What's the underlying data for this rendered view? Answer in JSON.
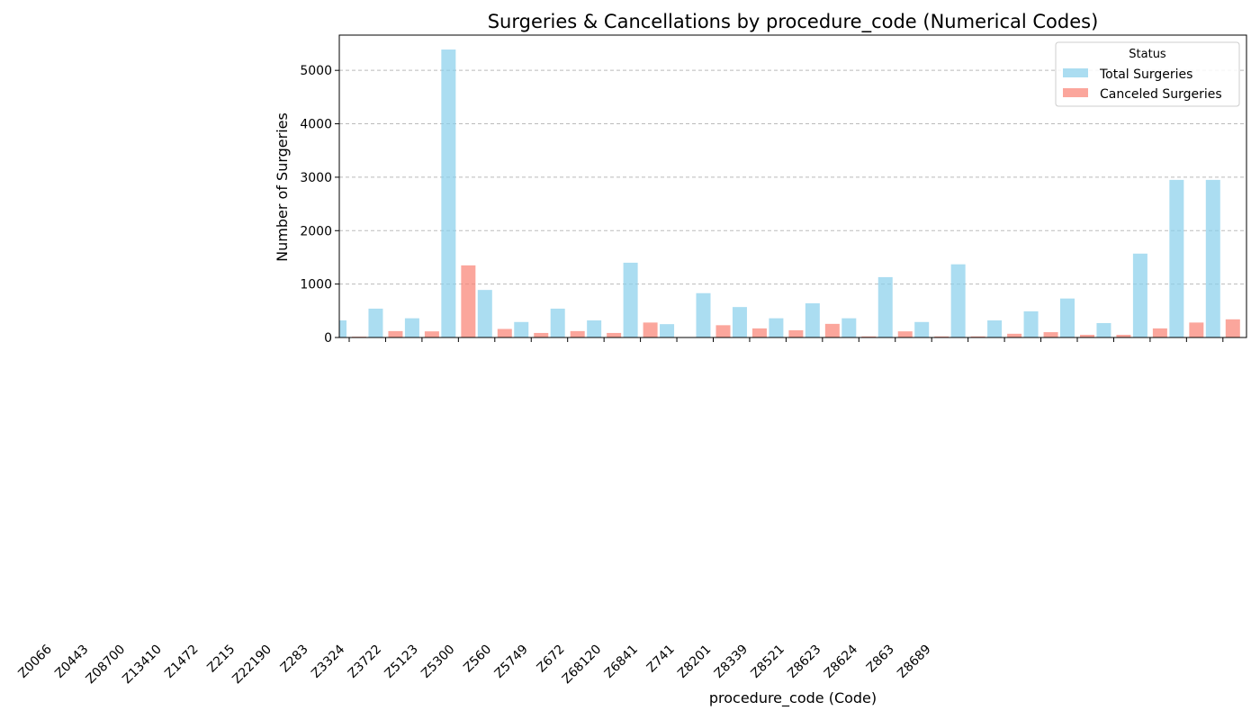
{
  "chart_data": {
    "type": "bar",
    "title": "Surgeries & Cancellations by procedure_code (Numerical Codes)",
    "xlabel": "procedure_code (Code)",
    "ylabel": "Number of Surgeries",
    "ylim": [
      0,
      5660
    ],
    "yticks": [
      0,
      1000,
      2000,
      3000,
      4000,
      5000
    ],
    "grid": "y-dashed",
    "legend": {
      "title": "Status",
      "placement": "top-right"
    },
    "category_labels": [
      "Z0066",
      "Z0443",
      "Z08700",
      "Z13410",
      "Z1472",
      "Z215",
      "Z22190",
      "Z283",
      "Z3324",
      "Z3722",
      "Z5123",
      "Z5300",
      "Z560",
      "Z5749",
      "Z672",
      "Z68120",
      "Z6841",
      "Z741",
      "Z8201",
      "Z8339",
      "Z8521",
      "Z8623",
      "Z8624",
      "Z863",
      "Z8689"
    ],
    "colors": {
      "total": "#87CEEB",
      "canceled": "#FA8072"
    },
    "series": [
      {
        "name": "Total Surgeries",
        "values": [
          320,
          540,
          360,
          5390,
          890,
          290,
          540,
          320,
          1400,
          250,
          830,
          570,
          360,
          640,
          360,
          1130,
          290,
          1370,
          320,
          490,
          730,
          270,
          1570,
          2950,
          2950
        ]
      },
      {
        "name": "Canceled Surgeries",
        "values": [
          15,
          120,
          115,
          1350,
          160,
          85,
          120,
          85,
          280,
          0,
          230,
          170,
          135,
          255,
          20,
          115,
          20,
          20,
          70,
          100,
          50,
          50,
          170,
          280,
          340
        ]
      }
    ]
  }
}
